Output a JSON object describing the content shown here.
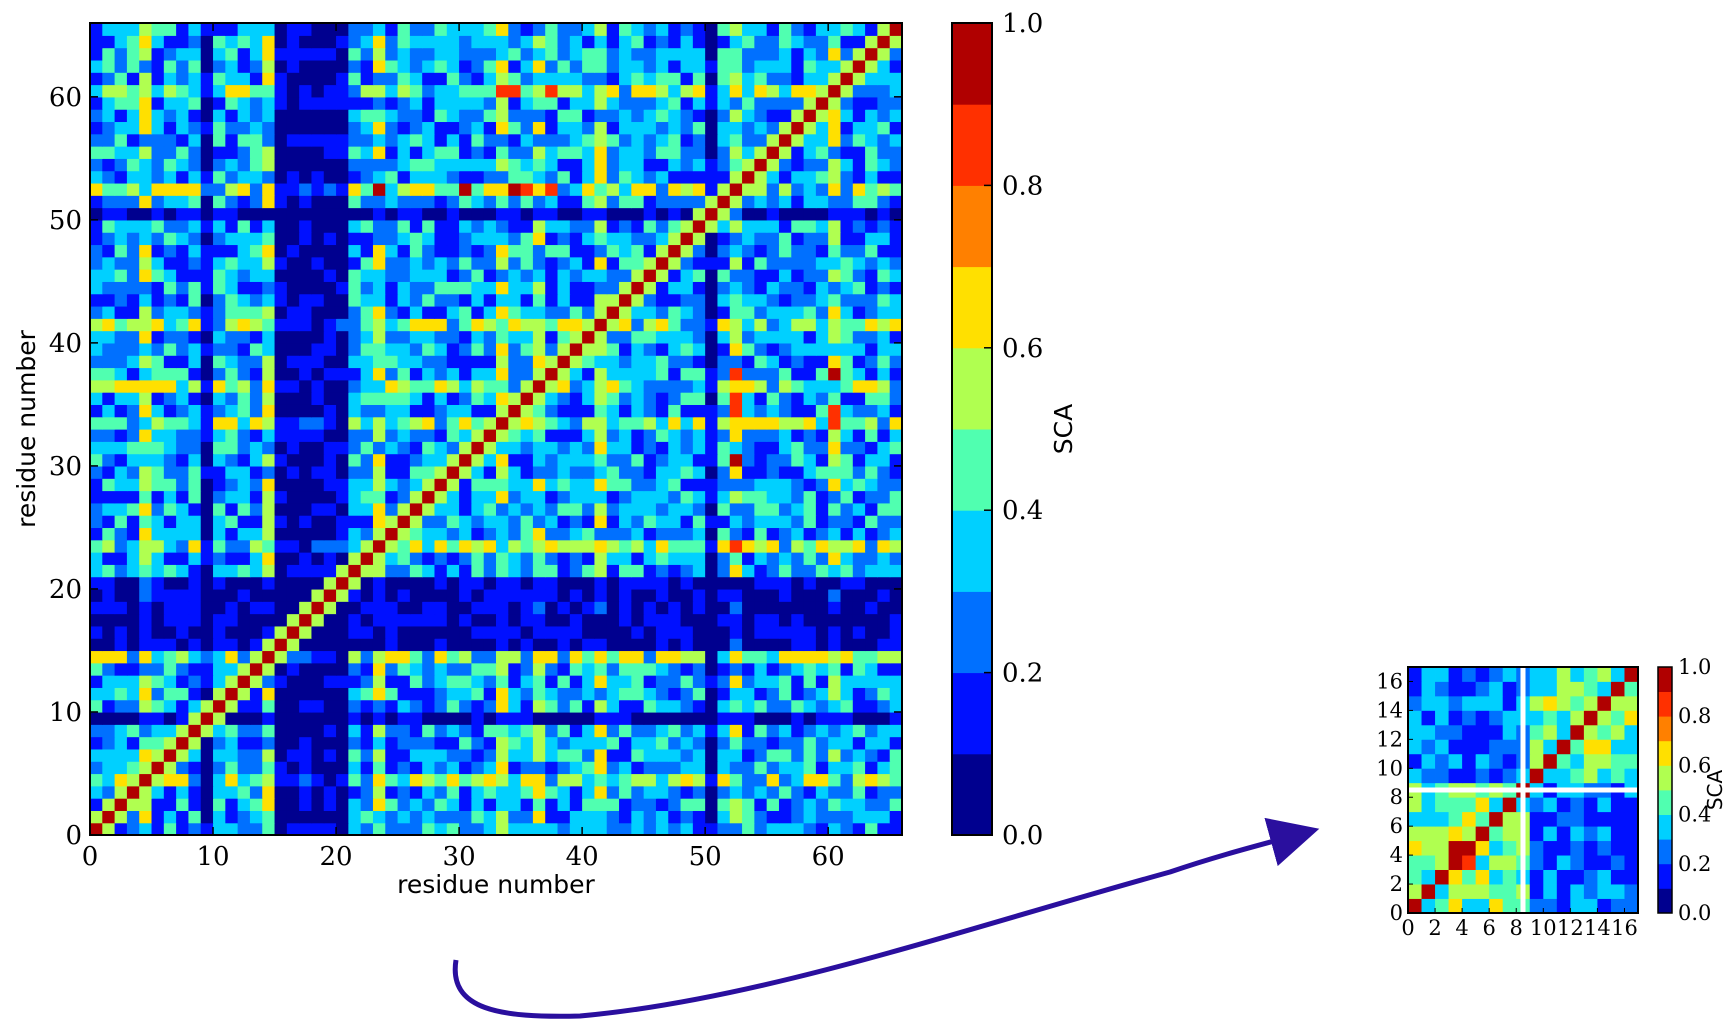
{
  "chart_data": [
    {
      "type": "heatmap",
      "xlabel": "residue number",
      "ylabel": "residue number",
      "xlim": [
        0,
        66
      ],
      "ylim": [
        0,
        66
      ],
      "n": 66,
      "xticks": [
        0,
        10,
        20,
        30,
        40,
        50,
        60
      ],
      "yticks": [
        0,
        10,
        20,
        30,
        40,
        50,
        60
      ],
      "xtick_labels": [
        "0",
        "10",
        "20",
        "30",
        "40",
        "50",
        "60"
      ],
      "ytick_labels": [
        "0",
        "10",
        "20",
        "30",
        "40",
        "50",
        "60"
      ],
      "colorbar_label": "SCA",
      "colorbar_ticks": [
        "0.0",
        "0.2",
        "0.4",
        "0.6",
        "0.8",
        "1.0"
      ],
      "colorbar_range": [
        0.0,
        1.0
      ],
      "low_rows": [
        9,
        15,
        16,
        17,
        18,
        19,
        20,
        50
      ],
      "high_rows": [
        4,
        14,
        23,
        33,
        36,
        41,
        52,
        60
      ],
      "hotspots": [
        [
          36,
          36
        ],
        [
          34,
          34
        ],
        [
          61,
          60
        ],
        [
          52,
          52
        ],
        [
          20,
          20
        ],
        [
          37,
          52
        ],
        [
          34,
          52
        ],
        [
          30,
          52
        ],
        [
          23,
          52
        ],
        [
          60,
          33
        ],
        [
          52,
          35
        ],
        [
          37,
          60
        ],
        [
          34,
          60
        ],
        [
          60,
          37
        ]
      ]
    },
    {
      "type": "heatmap",
      "xlim": [
        0,
        17
      ],
      "ylim": [
        0,
        17
      ],
      "n": 17,
      "xtick_labels": [
        "0",
        "2",
        "4",
        "6",
        "8",
        "10",
        "12",
        "14",
        "16"
      ],
      "ytick_labels": [
        "0",
        "2",
        "4",
        "6",
        "8",
        "10",
        "12",
        "14",
        "16"
      ],
      "colorbar_label": "SCA",
      "colorbar_ticks": [
        "0.0",
        "0.2",
        "0.4",
        "0.6",
        "0.8",
        "1.0"
      ],
      "colorbar_range": [
        0.0,
        1.0
      ],
      "block_divider": 8.5,
      "hotspots": [
        [
          3,
          3
        ],
        [
          4,
          4
        ],
        [
          3,
          4
        ],
        [
          16,
          16
        ],
        [
          12,
          12
        ],
        [
          11,
          11
        ]
      ]
    }
  ],
  "colors": {
    "levels": [
      "#00008f",
      "#0010ff",
      "#0070ff",
      "#00d0ff",
      "#50ffb0",
      "#b0ff50",
      "#ffe000",
      "#ff8000",
      "#ff3000",
      "#b00000"
    ],
    "arrow": "#2a0f9e",
    "divider": "#ffffff"
  }
}
